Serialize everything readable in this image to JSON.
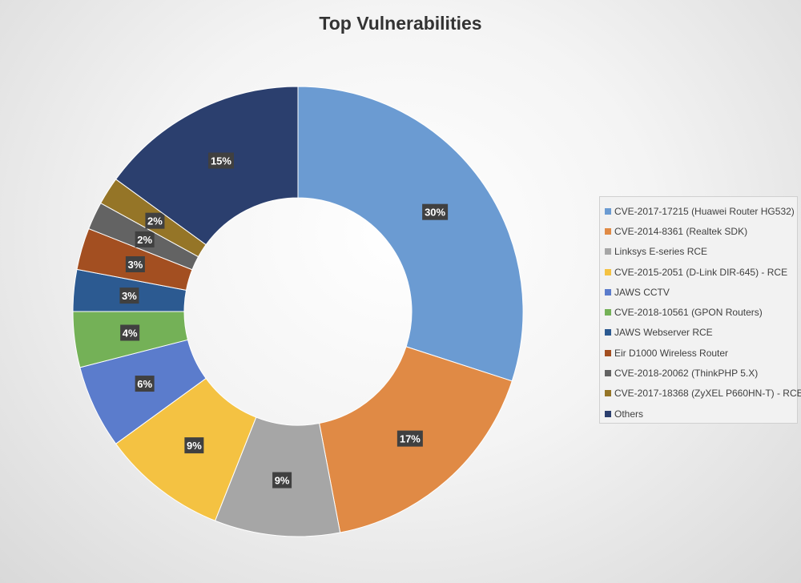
{
  "chart_data": {
    "type": "donut",
    "title": "Top Vulnerabilities",
    "legend_position": "right",
    "series": [
      {
        "name": "CVE-2017-17215 (Huawei Router HG532)",
        "value": 30,
        "label": "30%",
        "color": "#6b9bd2"
      },
      {
        "name": "CVE-2014-8361 (Realtek SDK)",
        "value": 17,
        "label": "17%",
        "color": "#e08a45"
      },
      {
        "name": "Linksys E-series RCE",
        "value": 9,
        "label": "9%",
        "color": "#a6a6a6"
      },
      {
        "name": "CVE-2015-2051 (D-Link DIR-645) - RCE",
        "value": 9,
        "label": "9%",
        "color": "#f4c242"
      },
      {
        "name": "JAWS CCTV",
        "value": 6,
        "label": "6%",
        "color": "#5b7ccc"
      },
      {
        "name": "CVE-2018-10561 (GPON Routers)",
        "value": 4,
        "label": "4%",
        "color": "#74b157"
      },
      {
        "name": "JAWS Webserver RCE",
        "value": 3,
        "label": "3%",
        "color": "#2c5a91"
      },
      {
        "name": "Eir D1000 Wireless Router",
        "value": 3,
        "label": "3%",
        "color": "#a34f21"
      },
      {
        "name": "CVE-2018-20062 (ThinkPHP 5.X)",
        "value": 2,
        "label": "2%",
        "color": "#636363"
      },
      {
        "name": "CVE-2017-18368 (ZyXEL P660HN-T) - RCE",
        "value": 2,
        "label": "2%",
        "color": "#957527"
      },
      {
        "name": "Others",
        "value": 15,
        "label": "15%",
        "color": "#2b3f6e"
      }
    ]
  }
}
